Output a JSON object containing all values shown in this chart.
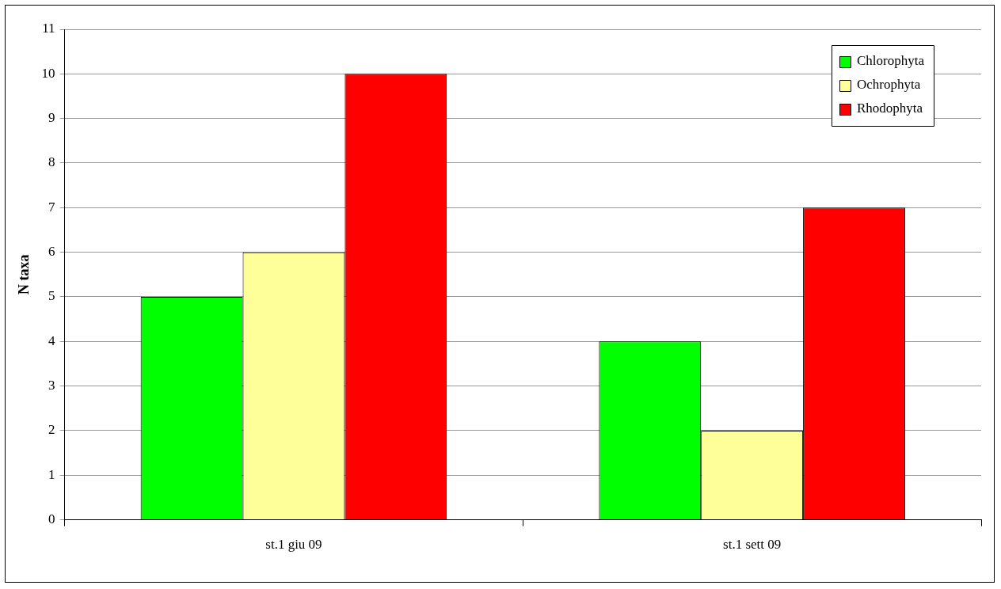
{
  "chart_data": {
    "type": "bar",
    "ylabel": "N taxa",
    "categories": [
      "st.1 giu 09",
      "st.1 sett 09"
    ],
    "series": [
      {
        "name": "Chlorophyta",
        "color": "#00ff00",
        "values": [
          5,
          4
        ]
      },
      {
        "name": "Ochrophyta",
        "color": "#ffff99",
        "values": [
          6,
          2
        ]
      },
      {
        "name": "Rhodophyta",
        "color": "#ff0000",
        "values": [
          10,
          7
        ]
      }
    ],
    "ylim": [
      0,
      11
    ],
    "yticks": [
      0,
      1,
      2,
      3,
      4,
      5,
      6,
      7,
      8,
      9,
      10,
      11
    ],
    "grid": "y",
    "legend": "top right"
  }
}
